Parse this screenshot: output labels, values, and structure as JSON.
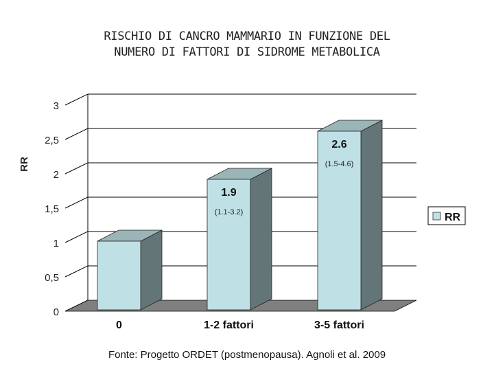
{
  "chart_data": {
    "type": "bar",
    "title_lines": [
      "RISCHIO DI CANCRO MAMMARIO IN FUNZIONE DEL",
      "NUMERO DI FATTORI DI SIDROME METABOLICA"
    ],
    "ylabel": "RR",
    "xlabel": "",
    "ylim": [
      0,
      3
    ],
    "yticks": [
      0,
      0.5,
      1,
      1.5,
      2,
      2.5,
      3
    ],
    "ytick_labels": [
      "0",
      "0,5",
      "1",
      "1,5",
      "2",
      "2,5",
      "3"
    ],
    "categories": [
      "0",
      "1-2 fattori",
      "3-5 fattori"
    ],
    "series": [
      {
        "name": "RR",
        "values": [
          1.0,
          1.9,
          2.6
        ],
        "value_labels": [
          "",
          "1.9",
          "2.6"
        ],
        "ci_labels": [
          "",
          "(1.1-3.2)",
          "(1.5-4.6)"
        ]
      }
    ],
    "grid": true,
    "legend_position": "right",
    "colors": {
      "bar_front": "#bfe0e4",
      "bar_side": "#647578",
      "bar_top": "#9ab4b7",
      "floor": "#7f7f7f",
      "grid": "#000000"
    }
  },
  "source": "Fonte: Progetto ORDET (postmenopausa). Agnoli et al.  2009"
}
